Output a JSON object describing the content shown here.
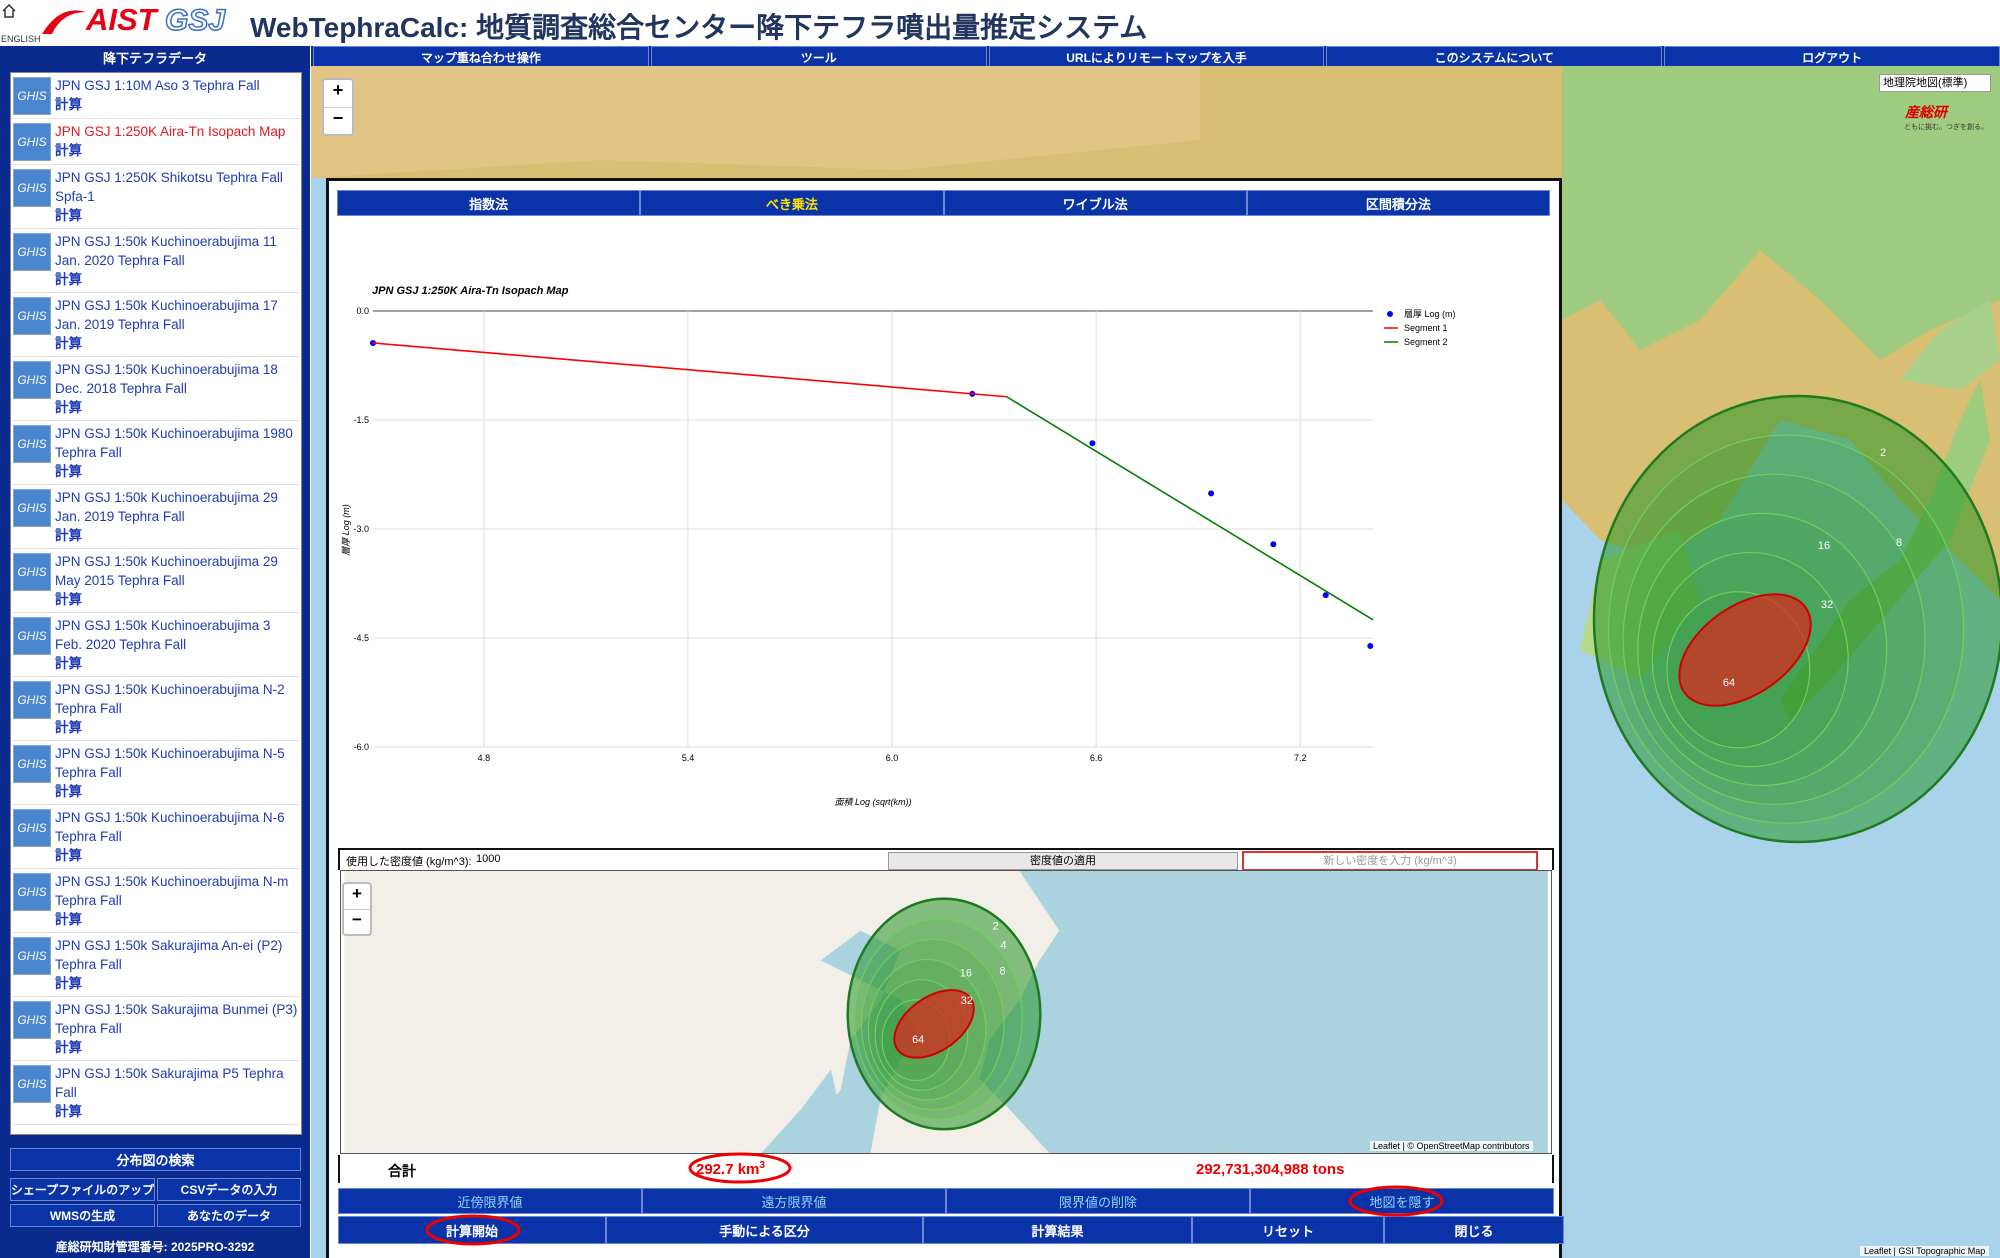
{
  "header": {
    "logo_aist": "AIST",
    "logo_gsj": "GSJ",
    "english": "ENGLISH",
    "title": "WebTephraCalc: 地質調査総合センター降下テフラ噴出量推定システム"
  },
  "sidebar": {
    "title": "降下テフラデータ",
    "items": [
      {
        "icon": "GHIS",
        "name": "JPN GSJ 1:10M Aso 3 Tephra Fall",
        "action": "計算"
      },
      {
        "icon": "GHIS",
        "name": "JPN GSJ 1:250K Aira-Tn Isopach Map",
        "action": "計算",
        "selected": true
      },
      {
        "icon": "GHIS",
        "name": "JPN GSJ 1:250K Shikotsu Tephra Fall Spfa-1",
        "action": "計算"
      },
      {
        "icon": "GHIS",
        "name": "JPN GSJ 1:50k Kuchinoerabujima 11 Jan. 2020 Tephra Fall",
        "action": "計算"
      },
      {
        "icon": "GHIS",
        "name": "JPN GSJ 1:50k Kuchinoerabujima 17 Jan. 2019 Tephra Fall",
        "action": "計算"
      },
      {
        "icon": "GHIS",
        "name": "JPN GSJ 1:50k Kuchinoerabujima 18 Dec. 2018 Tephra Fall",
        "action": "計算"
      },
      {
        "icon": "GHIS",
        "name": "JPN GSJ 1:50k Kuchinoerabujima 1980 Tephra Fall",
        "action": "計算"
      },
      {
        "icon": "GHIS",
        "name": "JPN GSJ 1:50k Kuchinoerabujima 29 Jan. 2019 Tephra Fall",
        "action": "計算"
      },
      {
        "icon": "GHIS",
        "name": "JPN GSJ 1:50k Kuchinoerabujima 29 May 2015 Tephra Fall",
        "action": "計算"
      },
      {
        "icon": "GHIS",
        "name": "JPN GSJ 1:50k Kuchinoerabujima 3 Feb. 2020 Tephra Fall",
        "action": "計算"
      },
      {
        "icon": "GHIS",
        "name": "JPN GSJ 1:50k Kuchinoerabujima N-2 Tephra Fall",
        "action": "計算"
      },
      {
        "icon": "GHIS",
        "name": "JPN GSJ 1:50k Kuchinoerabujima N-5 Tephra Fall",
        "action": "計算"
      },
      {
        "icon": "GHIS",
        "name": "JPN GSJ 1:50k Kuchinoerabujima N-6 Tephra Fall",
        "action": "計算"
      },
      {
        "icon": "GHIS",
        "name": "JPN GSJ 1:50k Kuchinoerabujima N-m Tephra Fall",
        "action": "計算"
      },
      {
        "icon": "GHIS",
        "name": "JPN GSJ 1:50k Sakurajima An-ei (P2) Tephra Fall",
        "action": "計算"
      },
      {
        "icon": "GHIS",
        "name": "JPN GSJ 1:50k Sakurajima Bunmei (P3) Tephra Fall",
        "action": "計算"
      },
      {
        "icon": "GHIS",
        "name": "JPN GSJ 1:50k Sakurajima P5 Tephra Fall",
        "action": "計算"
      }
    ],
    "search": "分布図の検索",
    "buttons": [
      "シェープファイルのアップ",
      "CSVデータの入力",
      "WMSの生成",
      "あなたのデータ"
    ],
    "footer": "産総研知財管理番号: 2025PRO-3292"
  },
  "nav": [
    "マップ重ね合わせ操作",
    "ツール",
    "URLによりリモートマップを入手",
    "このシステムについて",
    "ログアウト"
  ],
  "map": {
    "zoom_in": "+",
    "zoom_out": "−",
    "layer": "地理院地図(標準)",
    "brand": "産総研",
    "brand_sub": "ともに挑む。つぎを創る。",
    "contours": [
      "2",
      "16",
      "8",
      "32",
      "64"
    ],
    "attribution": "Leaflet | GSI Topographic Map"
  },
  "dialog": {
    "tabs": [
      "指数法",
      "べき乗法",
      "ワイブル法",
      "区間積分法"
    ],
    "active_tab": 1,
    "density": {
      "label": "使用した密度値 (kg/m^3):",
      "value": 1000,
      "apply": "密度値の適用",
      "placeholder": "新しい密度を入力 (kg/m^3)"
    },
    "mini_map": {
      "zoom_in": "+",
      "zoom_out": "−",
      "contours": [
        "2",
        "4",
        "8",
        "16",
        "32",
        "64"
      ],
      "attribution": "Leaflet | © OpenStreetMap contributors"
    },
    "totals": {
      "label": "合計",
      "volume": "292.7 km",
      "volume_sup": "3",
      "mass": "292,731,304,988 tons"
    },
    "buttons_row1": [
      "近傍限界値",
      "遠方限界値",
      "限界値の削除",
      "地図を隠す"
    ],
    "buttons_row2": [
      "計算開始",
      "手動による区分",
      "計算結果",
      "リセット",
      "閉じる"
    ]
  },
  "chart_data": {
    "type": "line",
    "title": "JPN GSJ 1:250K Aira-Tn Isopach Map",
    "x_label": "面積 Log (sqrt(km))",
    "y_label": "層厚 Log (m)",
    "xlim": [
      4.474,
      7.414
    ],
    "ylim": [
      -6,
      0
    ],
    "xticks": [
      4.8,
      5.4,
      {
        "value": 6,
        "label": "6.0"
      },
      6.6,
      7.2
    ],
    "yticks": [
      {
        "value": 0,
        "label": "0.0"
      },
      -1.5,
      {
        "value": -3,
        "label": "-3.0"
      },
      -4.5,
      {
        "value": -6,
        "label": "-6.0"
      }
    ],
    "grid": true,
    "legend": "upper right",
    "series": [
      {
        "name": "層厚 Log (m)",
        "color": "#0000ff",
        "mode": "markers",
        "x": [
          4.474,
          6.236,
          6.589,
          6.938,
          7.121,
          7.275,
          7.406
        ],
        "values": [
          -0.44,
          -1.14,
          -1.82,
          -2.51,
          -3.21,
          -3.91,
          -4.61
        ]
      },
      {
        "name": "Segment 1",
        "color": "#ff0000",
        "mode": "lines",
        "x": [
          4.474,
          6.337
        ],
        "values": [
          -0.44,
          -1.18
        ]
      },
      {
        "name": "Segment 2",
        "color": "#008000",
        "mode": "lines",
        "x": [
          6.337,
          7.414
        ],
        "values": [
          -1.18,
          -4.25
        ]
      }
    ]
  }
}
